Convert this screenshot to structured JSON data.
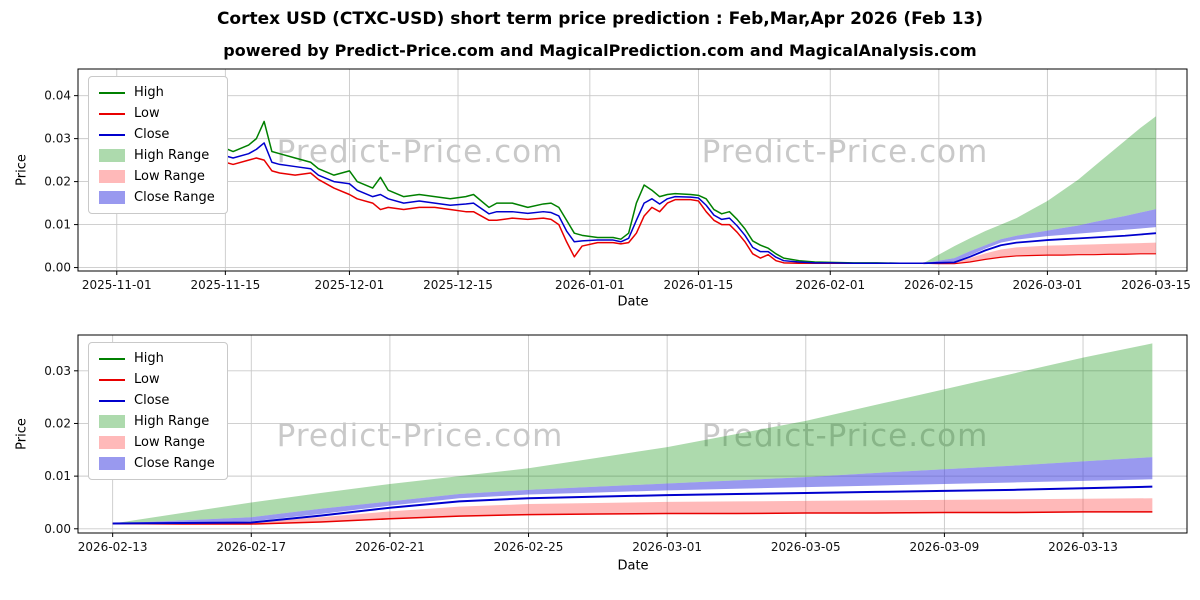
{
  "header": {
    "title": "Cortex USD (CTXC-USD) short term price prediction : Feb,Mar,Apr 2026 (Feb 13)",
    "subtitle": "powered by Predict-Price.com and MagicalPrediction.com and MagicalAnalysis.com"
  },
  "watermark": {
    "text": "Predict-Price.com"
  },
  "chart_data": [
    {
      "type": "line",
      "title": "",
      "xlabel": "Date",
      "ylabel": "Price",
      "xlim": [
        "2025-10-27",
        "2026-03-19"
      ],
      "ylim": [
        -0.0008,
        0.0462
      ],
      "grid": true,
      "legend_position": "upper left",
      "xticks": [
        "2025-11-01",
        "2025-11-15",
        "2025-12-01",
        "2025-12-15",
        "2026-01-01",
        "2026-01-15",
        "2026-02-01",
        "2026-02-15",
        "2026-03-01",
        "2026-03-15"
      ],
      "yticks": [
        0.0,
        0.01,
        0.02,
        0.03,
        0.04
      ],
      "legend": [
        {
          "label": "High",
          "kind": "line",
          "color": "#008000"
        },
        {
          "label": "Low",
          "kind": "line",
          "color": "#e80000"
        },
        {
          "label": "Close",
          "kind": "line",
          "color": "#0000cd"
        },
        {
          "label": "High Range",
          "kind": "patch",
          "color": "rgba(0,140,0,0.32)"
        },
        {
          "label": "Low Range",
          "kind": "patch",
          "color": "rgba(255,70,70,0.38)"
        },
        {
          "label": "Close Range",
          "kind": "patch",
          "color": "rgba(70,70,225,0.55)"
        }
      ],
      "series": {
        "hist_dates": [
          "2025-10-29",
          "2025-10-31",
          "2025-11-02",
          "2025-11-04",
          "2025-11-06",
          "2025-11-08",
          "2025-11-10",
          "2025-11-11",
          "2025-11-12",
          "2025-11-14",
          "2025-11-16",
          "2025-11-18",
          "2025-11-19",
          "2025-11-20",
          "2025-11-21",
          "2025-11-22",
          "2025-11-24",
          "2025-11-26",
          "2025-11-27",
          "2025-11-29",
          "2025-12-01",
          "2025-12-02",
          "2025-12-04",
          "2025-12-05",
          "2025-12-06",
          "2025-12-08",
          "2025-12-10",
          "2025-12-12",
          "2025-12-14",
          "2025-12-16",
          "2025-12-17",
          "2025-12-19",
          "2025-12-20",
          "2025-12-22",
          "2025-12-24",
          "2025-12-26",
          "2025-12-27",
          "2025-12-28",
          "2025-12-29",
          "2025-12-30",
          "2025-12-31",
          "2026-01-02",
          "2026-01-04",
          "2026-01-05",
          "2026-01-06",
          "2026-01-07",
          "2026-01-08",
          "2026-01-09",
          "2026-01-10",
          "2026-01-11",
          "2026-01-12",
          "2026-01-14",
          "2026-01-15",
          "2026-01-16",
          "2026-01-17",
          "2026-01-18",
          "2026-01-19",
          "2026-01-20",
          "2026-01-21",
          "2026-01-22",
          "2026-01-23",
          "2026-01-24",
          "2026-01-25",
          "2026-01-26",
          "2026-01-28",
          "2026-01-30",
          "2026-02-01",
          "2026-02-04",
          "2026-02-07",
          "2026-02-10",
          "2026-02-13"
        ],
        "hist_high": [
          0.044,
          0.0425,
          0.04,
          0.038,
          0.035,
          0.032,
          0.033,
          0.031,
          0.03,
          0.0285,
          0.027,
          0.0285,
          0.03,
          0.034,
          0.027,
          0.0265,
          0.0255,
          0.0245,
          0.023,
          0.0215,
          0.0225,
          0.02,
          0.0185,
          0.021,
          0.018,
          0.0165,
          0.017,
          0.0165,
          0.016,
          0.0165,
          0.017,
          0.014,
          0.015,
          0.015,
          0.014,
          0.0148,
          0.015,
          0.014,
          0.011,
          0.008,
          0.0075,
          0.007,
          0.007,
          0.0066,
          0.008,
          0.015,
          0.0192,
          0.018,
          0.0165,
          0.017,
          0.0172,
          0.017,
          0.0168,
          0.016,
          0.0135,
          0.0125,
          0.013,
          0.0112,
          0.009,
          0.0062,
          0.0052,
          0.0045,
          0.0032,
          0.0022,
          0.0016,
          0.0013,
          0.0012,
          0.0011,
          0.0011,
          0.001,
          0.001
        ],
        "hist_low": [
          0.04,
          0.038,
          0.0355,
          0.034,
          0.031,
          0.0285,
          0.029,
          0.0275,
          0.0265,
          0.025,
          0.024,
          0.025,
          0.0255,
          0.025,
          0.0225,
          0.022,
          0.0215,
          0.022,
          0.0205,
          0.0185,
          0.017,
          0.016,
          0.015,
          0.0135,
          0.014,
          0.0135,
          0.014,
          0.014,
          0.0135,
          0.013,
          0.013,
          0.011,
          0.011,
          0.0115,
          0.0112,
          0.0115,
          0.0112,
          0.01,
          0.006,
          0.0025,
          0.005,
          0.0058,
          0.0058,
          0.0055,
          0.0058,
          0.008,
          0.012,
          0.014,
          0.013,
          0.015,
          0.0158,
          0.0158,
          0.0155,
          0.013,
          0.011,
          0.01,
          0.01,
          0.0082,
          0.006,
          0.0032,
          0.0022,
          0.003,
          0.0016,
          0.0011,
          0.001,
          0.001,
          0.001,
          0.001,
          0.001,
          0.001,
          0.001
        ],
        "hist_close": [
          0.042,
          0.04,
          0.0375,
          0.036,
          0.033,
          0.03,
          0.031,
          0.029,
          0.028,
          0.0265,
          0.0255,
          0.0265,
          0.0275,
          0.029,
          0.0245,
          0.024,
          0.0235,
          0.023,
          0.0215,
          0.02,
          0.0195,
          0.018,
          0.0165,
          0.017,
          0.016,
          0.015,
          0.0155,
          0.015,
          0.0145,
          0.0148,
          0.015,
          0.0125,
          0.013,
          0.013,
          0.0126,
          0.013,
          0.0128,
          0.012,
          0.0085,
          0.006,
          0.0062,
          0.0064,
          0.0064,
          0.006,
          0.0068,
          0.011,
          0.015,
          0.016,
          0.0148,
          0.016,
          0.0165,
          0.0164,
          0.0162,
          0.0145,
          0.0122,
          0.0112,
          0.0115,
          0.0097,
          0.0075,
          0.0047,
          0.0037,
          0.0037,
          0.0024,
          0.0016,
          0.0013,
          0.0011,
          0.0011,
          0.001,
          0.001,
          0.001,
          0.001
        ],
        "fcst_dates": [
          "2026-02-13",
          "2026-02-15",
          "2026-02-17",
          "2026-02-19",
          "2026-02-21",
          "2026-02-23",
          "2026-02-25",
          "2026-02-27",
          "2026-03-01",
          "2026-03-03",
          "2026-03-05",
          "2026-03-07",
          "2026-03-09",
          "2026-03-11",
          "2026-03-13",
          "2026-03-15"
        ],
        "fcst_close": [
          0.001,
          0.0011,
          0.0012,
          0.0025,
          0.004,
          0.0052,
          0.0058,
          0.0061,
          0.0064,
          0.0066,
          0.0068,
          0.007,
          0.0072,
          0.0074,
          0.0077,
          0.008
        ],
        "fcst_close_lower": [
          0.001,
          0.0012,
          0.0014,
          0.0028,
          0.0044,
          0.0058,
          0.0065,
          0.0069,
          0.0073,
          0.0076,
          0.0079,
          0.0082,
          0.0085,
          0.0088,
          0.0091,
          0.0094
        ],
        "fcst_close_upper": [
          0.001,
          0.0016,
          0.0022,
          0.0038,
          0.0052,
          0.0066,
          0.0074,
          0.008,
          0.0086,
          0.0092,
          0.0098,
          0.0106,
          0.0113,
          0.012,
          0.0128,
          0.0136
        ],
        "fcst_high_upper": [
          0.001,
          0.003,
          0.005,
          0.0068,
          0.0085,
          0.01,
          0.0115,
          0.0135,
          0.0155,
          0.018,
          0.0205,
          0.0235,
          0.0265,
          0.0295,
          0.0325,
          0.0352
        ],
        "fcst_low_upper": [
          0.001,
          0.0011,
          0.0013,
          0.0022,
          0.0033,
          0.0042,
          0.0047,
          0.0049,
          0.0051,
          0.0052,
          0.0053,
          0.0054,
          0.0055,
          0.0056,
          0.0057,
          0.0058
        ],
        "fcst_low": [
          0.001,
          0.0009,
          0.0009,
          0.0013,
          0.0019,
          0.0024,
          0.0027,
          0.0028,
          0.0029,
          0.0029,
          0.003,
          0.003,
          0.0031,
          0.0031,
          0.0032,
          0.0032
        ]
      },
      "bands": [
        {
          "name": "high-range",
          "x": "fcst_dates",
          "upper": "fcst_high_upper",
          "lower": "fcst_close_upper",
          "color": "rgba(0,140,0,0.32)"
        },
        {
          "name": "close-range",
          "x": "fcst_dates",
          "upper": "fcst_close_upper",
          "lower": "fcst_close_lower",
          "color": "rgba(70,70,225,0.55)"
        },
        {
          "name": "low-range",
          "x": "fcst_dates",
          "upper": "fcst_low_upper",
          "lower": "fcst_low",
          "color": "rgba(255,70,70,0.38)"
        }
      ],
      "lines": [
        {
          "name": "high",
          "x": "hist_dates",
          "y": "hist_high",
          "color": "#008000",
          "width": 1.5
        },
        {
          "name": "low",
          "x": "hist_dates",
          "y": "hist_low",
          "color": "#e80000",
          "width": 1.5
        },
        {
          "name": "close",
          "x": "hist_dates",
          "y": "hist_close",
          "color": "#0000cd",
          "width": 1.5
        },
        {
          "name": "low-forecast",
          "x": "fcst_dates",
          "y": "fcst_low",
          "color": "#e80000",
          "width": 1.2
        },
        {
          "name": "close-forecast",
          "x": "fcst_dates",
          "y": "fcst_close",
          "color": "#0000cd",
          "width": 1.8
        }
      ]
    },
    {
      "type": "line",
      "title": "",
      "xlabel": "Date",
      "ylabel": "Price",
      "xlim": [
        "2026-02-12",
        "2026-03-16"
      ],
      "ylim": [
        -0.0008,
        0.0368
      ],
      "grid": true,
      "legend_position": "upper left",
      "xticks": [
        "2026-02-13",
        "2026-02-17",
        "2026-02-21",
        "2026-02-25",
        "2026-03-01",
        "2026-03-05",
        "2026-03-09",
        "2026-03-13"
      ],
      "yticks": [
        0.0,
        0.01,
        0.02,
        0.03
      ],
      "legend": [
        {
          "label": "High",
          "kind": "line",
          "color": "#008000"
        },
        {
          "label": "Low",
          "kind": "line",
          "color": "#e80000"
        },
        {
          "label": "Close",
          "kind": "line",
          "color": "#0000cd"
        },
        {
          "label": "High Range",
          "kind": "patch",
          "color": "rgba(0,140,0,0.32)"
        },
        {
          "label": "Low Range",
          "kind": "patch",
          "color": "rgba(255,70,70,0.38)"
        },
        {
          "label": "Close Range",
          "kind": "patch",
          "color": "rgba(70,70,225,0.55)"
        }
      ],
      "series": {
        "fcst_dates": [
          "2026-02-13",
          "2026-02-15",
          "2026-02-17",
          "2026-02-19",
          "2026-02-21",
          "2026-02-23",
          "2026-02-25",
          "2026-02-27",
          "2026-03-01",
          "2026-03-03",
          "2026-03-05",
          "2026-03-07",
          "2026-03-09",
          "2026-03-11",
          "2026-03-13",
          "2026-03-15"
        ],
        "fcst_close": [
          0.001,
          0.0011,
          0.0012,
          0.0025,
          0.004,
          0.0052,
          0.0058,
          0.0061,
          0.0064,
          0.0066,
          0.0068,
          0.007,
          0.0072,
          0.0074,
          0.0077,
          0.008
        ],
        "fcst_close_lower": [
          0.001,
          0.0012,
          0.0014,
          0.0028,
          0.0044,
          0.0058,
          0.0065,
          0.0069,
          0.0073,
          0.0076,
          0.0079,
          0.0082,
          0.0085,
          0.0088,
          0.0091,
          0.0094
        ],
        "fcst_close_upper": [
          0.001,
          0.0016,
          0.0022,
          0.0038,
          0.0052,
          0.0066,
          0.0074,
          0.008,
          0.0086,
          0.0092,
          0.0098,
          0.0106,
          0.0113,
          0.012,
          0.0128,
          0.0136
        ],
        "fcst_high_upper": [
          0.001,
          0.003,
          0.005,
          0.0068,
          0.0085,
          0.01,
          0.0115,
          0.0135,
          0.0155,
          0.018,
          0.0205,
          0.0235,
          0.0265,
          0.0295,
          0.0325,
          0.0352
        ],
        "fcst_low_upper": [
          0.001,
          0.0011,
          0.0013,
          0.0022,
          0.0033,
          0.0042,
          0.0047,
          0.0049,
          0.0051,
          0.0052,
          0.0053,
          0.0054,
          0.0055,
          0.0056,
          0.0057,
          0.0058
        ],
        "fcst_low": [
          0.001,
          0.0009,
          0.0009,
          0.0013,
          0.0019,
          0.0024,
          0.0027,
          0.0028,
          0.0029,
          0.0029,
          0.003,
          0.003,
          0.0031,
          0.0031,
          0.0032,
          0.0032
        ]
      },
      "bands": [
        {
          "name": "high-range",
          "x": "fcst_dates",
          "upper": "fcst_high_upper",
          "lower": "fcst_close_upper",
          "color": "rgba(0,140,0,0.32)"
        },
        {
          "name": "close-range",
          "x": "fcst_dates",
          "upper": "fcst_close_upper",
          "lower": "fcst_close_lower",
          "color": "rgba(70,70,225,0.55)"
        },
        {
          "name": "low-range",
          "x": "fcst_dates",
          "upper": "fcst_low_upper",
          "lower": "fcst_low",
          "color": "rgba(255,70,70,0.38)"
        }
      ],
      "lines": [
        {
          "name": "low-forecast",
          "x": "fcst_dates",
          "y": "fcst_low",
          "color": "#e80000",
          "width": 1.5
        },
        {
          "name": "close-forecast",
          "x": "fcst_dates",
          "y": "fcst_close",
          "color": "#0000cd",
          "width": 2.0
        }
      ]
    }
  ]
}
